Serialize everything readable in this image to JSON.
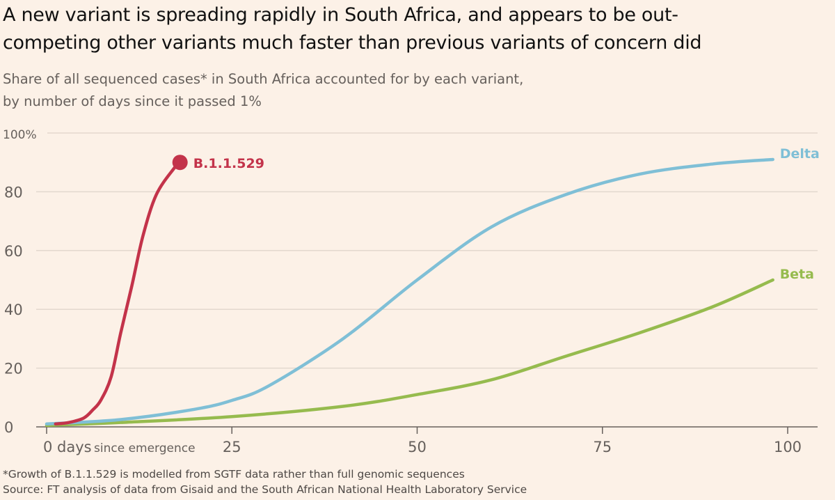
{
  "title": "A new variant is spreading rapidly in South Africa, and appears to be out-competing other variants much faster than previous variants of concern did",
  "title_line1": "A new variant is spreading rapidly in South Africa, and appears to be out-",
  "title_line2": "competing other variants much faster than previous variants of concern did",
  "subtitle_line1": "Share of all sequenced cases* in South Africa accounted for by each variant,",
  "subtitle_line2": "by number of days since it passed 1%",
  "footnote": "*Growth of B.1.1.529 is modelled from SGTF data rather than full genomic sequences",
  "source": "Source: FT analysis of data from Gisaid and the South African National Health Laboratory Service",
  "chart_data": {
    "type": "line",
    "xlabel": "days since emergence",
    "ylabel": "",
    "xlim": [
      0,
      100
    ],
    "ylim": [
      0,
      100
    ],
    "x_ticks": [
      {
        "v": 0,
        "label": "0 days"
      },
      {
        "v": 25,
        "label": "25"
      },
      {
        "v": 50,
        "label": "50"
      },
      {
        "v": 75,
        "label": "75"
      },
      {
        "v": 100,
        "label": "100"
      }
    ],
    "x_first_suffix": "since emergence",
    "y_ticks": [
      {
        "v": 0,
        "label": "0"
      },
      {
        "v": 20,
        "label": "20"
      },
      {
        "v": 40,
        "label": "40"
      },
      {
        "v": 60,
        "label": "60"
      },
      {
        "v": 80,
        "label": "80"
      },
      {
        "v": 100,
        "label": "100%"
      }
    ],
    "grid": true,
    "series": [
      {
        "name": "B.1.1.529",
        "color": "#c3334a",
        "end_marker": true,
        "x": [
          1.2,
          3,
          5,
          6.2,
          7.3,
          8.7,
          10,
          11.5,
          13,
          14.8,
          17.2,
          18
        ],
        "y": [
          1,
          1.5,
          3,
          5.7,
          9,
          17,
          32,
          48,
          65,
          79,
          88,
          90
        ]
      },
      {
        "name": "Delta",
        "color": "#7fbfd6",
        "x": [
          0,
          10,
          20,
          25,
          30,
          40,
          50,
          60,
          70,
          80,
          90,
          98
        ],
        "y": [
          1,
          2.5,
          6,
          9,
          14,
          30,
          50,
          68,
          79,
          86,
          89.5,
          91
        ]
      },
      {
        "name": "Beta",
        "color": "#96bb4e",
        "x": [
          0,
          10,
          25,
          40,
          50,
          60,
          70,
          80,
          90,
          98
        ],
        "y": [
          0.5,
          1.5,
          3.5,
          7,
          11,
          16,
          24,
          32,
          41,
          50
        ]
      }
    ]
  }
}
